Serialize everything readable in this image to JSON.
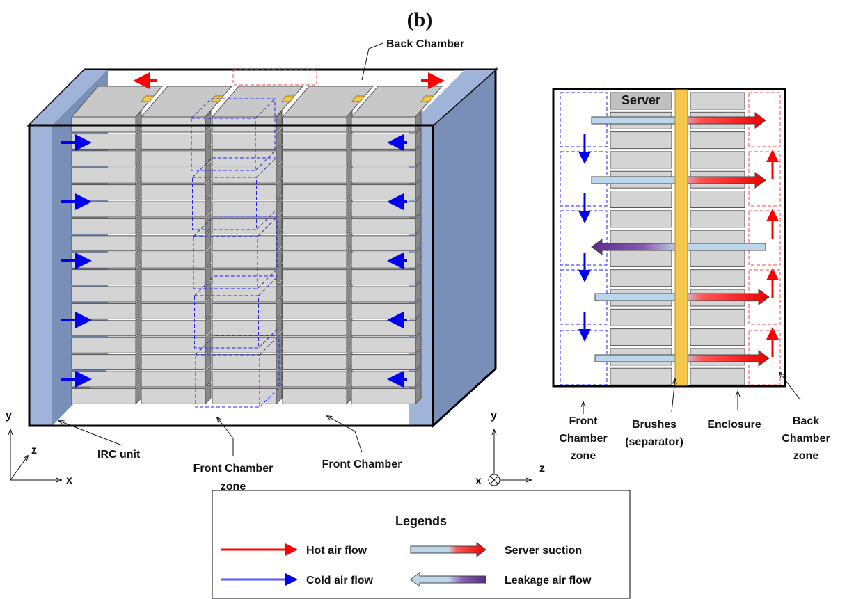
{
  "title": "(b)",
  "left_view": {
    "back_chamber": "Back Chamber",
    "irc_unit": "IRC unit",
    "front_chamber_zone": [
      "Front Chamber",
      "zone"
    ],
    "front_chamber": "Front Chamber",
    "axes": {
      "y": "y",
      "z": "z",
      "x": "x"
    }
  },
  "right_view": {
    "server": "Server",
    "front_chamber_zone": [
      "Front",
      "Chamber",
      "zone"
    ],
    "brushes": [
      "Brushes",
      "(separator)"
    ],
    "enclosure": "Enclosure",
    "back_chamber_zone": [
      "Back",
      "Chamber",
      "zone"
    ],
    "axes": {
      "y": "y",
      "x": "x",
      "z": "z"
    }
  },
  "legend": {
    "title": "Legends",
    "items": [
      "Hot air flow",
      "Server suction",
      "Cold air flow",
      "Leakage air flow"
    ]
  }
}
